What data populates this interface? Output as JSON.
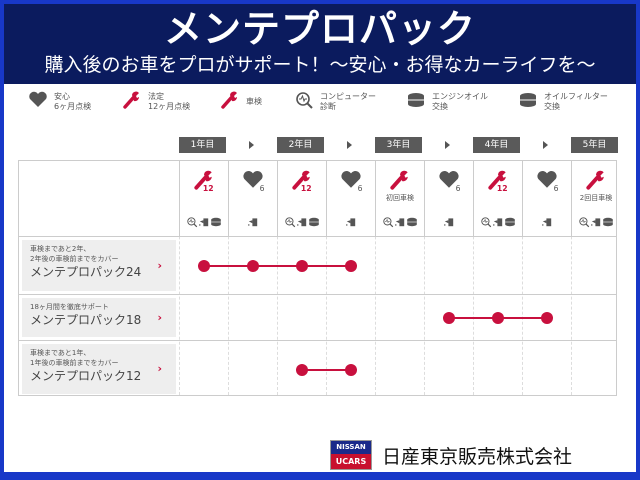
{
  "header": {
    "title": "メンテプロパック",
    "subtitle": "購入後のお車をプロがサポート！～安心・お得なカーライフを～"
  },
  "legend": [
    {
      "icon": "heart-6-icon",
      "line1": "安心",
      "line2": "6ヶ月点検"
    },
    {
      "icon": "wrench-12-icon",
      "line1": "法定",
      "line2": "12ヶ月点検"
    },
    {
      "icon": "wrench-icon",
      "line1": "車検",
      "line2": ""
    },
    {
      "icon": "computer-diagnosis-icon",
      "line1": "コンピューター",
      "line2": "診断"
    },
    {
      "icon": "engine-oil-icon",
      "line1": "エンジンオイル",
      "line2": "交換"
    },
    {
      "icon": "oil-filter-icon",
      "line1": "オイルフィルター",
      "line2": "交換"
    }
  ],
  "years": [
    "1年目",
    "2年目",
    "3年目",
    "4年目",
    "5年目"
  ],
  "columns": [
    {
      "main": "wrench-12",
      "caption": "",
      "sub": [
        "diagnosis",
        "oil",
        "filter"
      ]
    },
    {
      "main": "heart-6",
      "caption": "",
      "sub": [
        "oil"
      ]
    },
    {
      "main": "wrench-12",
      "caption": "",
      "sub": [
        "diagnosis",
        "oil",
        "filter"
      ]
    },
    {
      "main": "heart-6",
      "caption": "",
      "sub": [
        "oil"
      ]
    },
    {
      "main": "wrench",
      "caption": "初回車検",
      "sub": [
        "diagnosis",
        "oil",
        "filter"
      ]
    },
    {
      "main": "heart-6",
      "caption": "",
      "sub": [
        "oil"
      ]
    },
    {
      "main": "wrench-12",
      "caption": "",
      "sub": [
        "diagnosis",
        "oil",
        "filter"
      ]
    },
    {
      "main": "heart-6",
      "caption": "",
      "sub": [
        "oil"
      ]
    },
    {
      "main": "wrench",
      "caption": "2回目車検",
      "sub": [
        "diagnosis",
        "oil",
        "filter"
      ]
    }
  ],
  "packs": [
    {
      "desc1": "車検まであと2年、",
      "desc2": "2年後の車検前までをカバー",
      "name": "メンテプロパック24",
      "from": 0,
      "to": 3
    },
    {
      "desc1": "18ヶ月間を徹底サポート",
      "desc2": "",
      "name": "メンテプロパック18",
      "from": 5,
      "to": 7
    },
    {
      "desc1": "車検まであと1年、",
      "desc2": "1年後の車検前までをカバー",
      "name": "メンテプロパック12",
      "from": 2,
      "to": 3
    }
  ],
  "footer": {
    "logo_top": "NISSAN",
    "logo_bottom": "UCARS",
    "company": "日産東京販売株式会社"
  },
  "colors": {
    "accent": "#c8103e",
    "header_bg": "#0b1b5e",
    "border": "#1838c8",
    "icon_gray": "#555555"
  }
}
